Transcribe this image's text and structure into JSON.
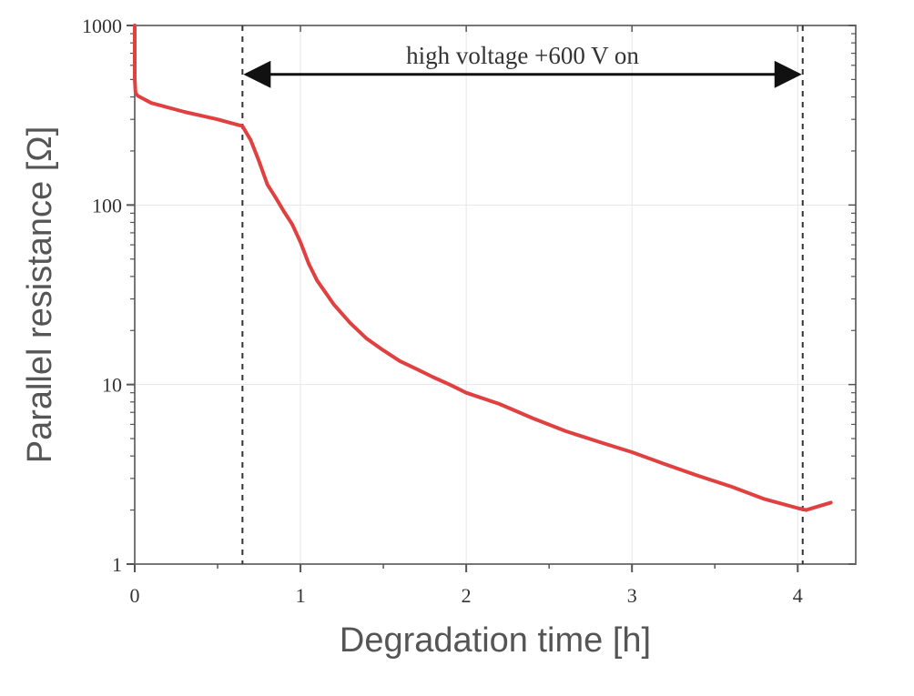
{
  "chart_data": {
    "type": "line",
    "title": "",
    "xlabel": "Degradation time [h]",
    "ylabel": "Parallel resistance [Ω]",
    "xlim": [
      0,
      4.35
    ],
    "ylim": [
      1,
      1000
    ],
    "yscale": "log",
    "grid": true,
    "xticks": [
      0,
      1,
      2,
      3,
      4
    ],
    "xtick_labels": [
      "0",
      "1",
      "2",
      "3",
      "4"
    ],
    "yticks": [
      1,
      10,
      100,
      1000
    ],
    "ytick_labels": [
      "1",
      "10",
      "100",
      "1000"
    ],
    "series_color": "#e04040",
    "series": [
      {
        "x": [
          0.0,
          0.0,
          0.0,
          0.005,
          0.02,
          0.1,
          0.3,
          0.5,
          0.65,
          0.7,
          0.75,
          0.8,
          0.85,
          0.9,
          0.95,
          1.0,
          1.05,
          1.1,
          1.2,
          1.3,
          1.4,
          1.5,
          1.6,
          1.7,
          1.8,
          1.9,
          2.0,
          2.2,
          2.4,
          2.6,
          2.8,
          3.0,
          3.2,
          3.4,
          3.6,
          3.8,
          4.0,
          4.05,
          4.2
        ],
        "y": [
          1000,
          700,
          500,
          420,
          405,
          370,
          330,
          300,
          275,
          230,
          175,
          130,
          110,
          92,
          78,
          62,
          47,
          38,
          28,
          22,
          18,
          15.5,
          13.5,
          12.2,
          11,
          10,
          9,
          7.8,
          6.5,
          5.5,
          4.8,
          4.2,
          3.6,
          3.1,
          2.7,
          2.3,
          2.05,
          2.0,
          2.2
        ]
      }
    ],
    "vlines": [
      0.65,
      4.03
    ],
    "annotation": {
      "text": "high voltage +600 V on",
      "x_start": 0.65,
      "x_end": 4.03,
      "y": 600
    }
  }
}
